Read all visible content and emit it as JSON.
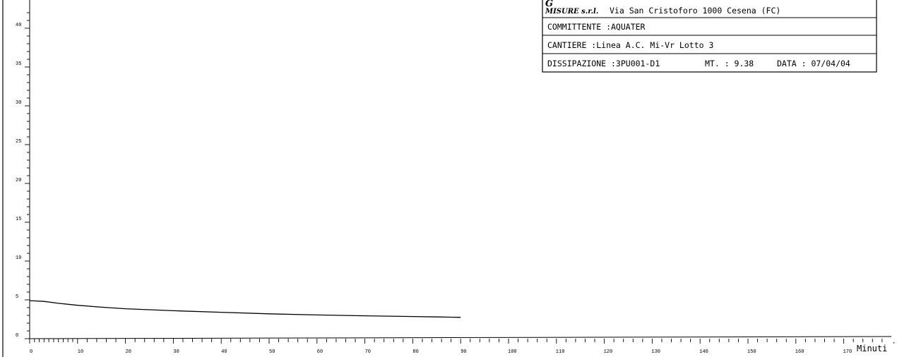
{
  "chart_data": {
    "type": "line",
    "x_label": "Minuti",
    "x_ticks": [
      0,
      10,
      20,
      30,
      40,
      50,
      60,
      70,
      80,
      90,
      100,
      110,
      120,
      130,
      140,
      150,
      160,
      170
    ],
    "y_ticks": [
      0,
      5,
      10,
      15,
      20,
      25,
      30,
      35,
      40
    ],
    "x_range": [
      0,
      180
    ],
    "y_range": [
      0,
      42
    ],
    "grid": false,
    "series": [
      {
        "x": [
          0,
          3,
          6,
          10,
          15,
          20,
          30,
          40,
          50,
          60,
          70,
          80,
          85,
          90
        ],
        "y": [
          4.9,
          4.8,
          4.55,
          4.3,
          4.05,
          3.85,
          3.6,
          3.4,
          3.2,
          3.05,
          2.95,
          2.85,
          2.8,
          2.75
        ]
      }
    ]
  },
  "info_box": {
    "logo_g": "G",
    "logo_misure": "MISURE s.r.l.",
    "address": "Via San Cristoforo 1000 Cesena (FC)",
    "committente": "COMMITTENTE :AQUATER",
    "cantiere": "CANTIERE :Linea A.C. Mi-Vr Lotto 3",
    "dissipazione": "DISSIPAZIONE :3PU001-D1",
    "mt": "MT. : 9.38",
    "data": "DATA : 07/04/04"
  }
}
